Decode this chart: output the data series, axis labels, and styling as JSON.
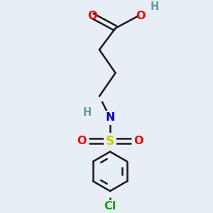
{
  "background_color": "#e8eef5",
  "bond_color": "#1a1a1a",
  "atom_colors": {
    "O": "#ff0000",
    "N": "#0000cd",
    "S": "#cccc00",
    "Cl": "#00aa00",
    "H": "#5f9ea0",
    "C": "#1a1a1a"
  },
  "line_width": 1.8,
  "figsize": [
    3.0,
    3.0
  ],
  "dpi": 100,
  "xlim": [
    -1.5,
    1.5
  ],
  "ylim": [
    -3.2,
    2.2
  ]
}
